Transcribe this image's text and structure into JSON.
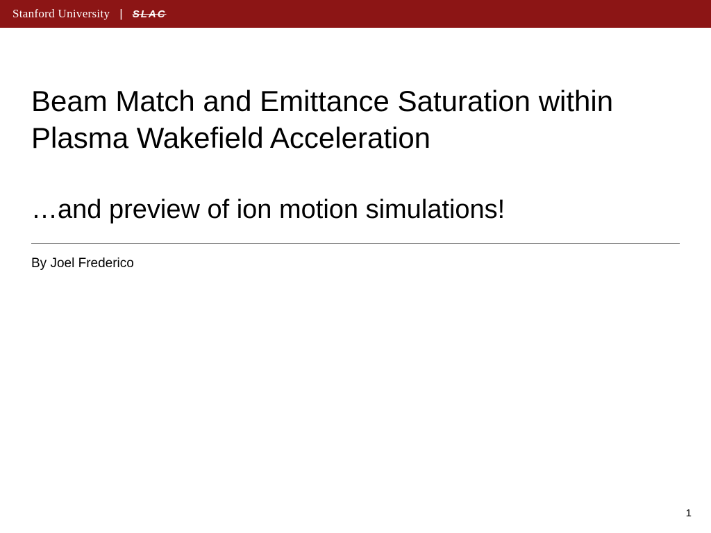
{
  "header": {
    "stanford_label": "Stanford University",
    "slac_label": "SLAC",
    "bg_color": "#8c1515",
    "text_color": "#ffffff"
  },
  "slide": {
    "title": "Beam Match and Emittance Saturation within Plasma Wakefield Acceleration",
    "subtitle": "…and preview of ion motion simulations!",
    "author_prefix": "By ",
    "author_name": "Joel Frederico",
    "page_number": "1",
    "title_fontsize": 42,
    "subtitle_fontsize": 38,
    "author_fontsize": 19,
    "background_color": "#ffffff",
    "text_color": "#000000",
    "divider_color": "#555555"
  }
}
